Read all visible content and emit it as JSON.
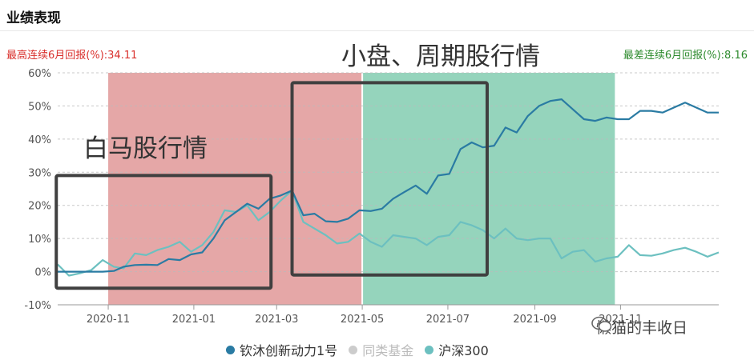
{
  "header": {
    "title": "业绩表现"
  },
  "stats": {
    "best": "最高连续6月回报(%):34.11",
    "worst": "最差连续6月回报(%):8.16"
  },
  "annotations": {
    "white_horse": "白马股行情",
    "small_cycle": "小盘、周期股行情"
  },
  "watermark": {
    "text": "懒猫的丰收日"
  },
  "colors": {
    "fund": "#2a7ba3",
    "index": "#6cc0c0",
    "peer": "#cccccc",
    "red_band": "#dc8a8a",
    "green_band": "#72c6a5"
  },
  "chart_data": {
    "type": "line",
    "ylim": [
      -10,
      60
    ],
    "y_ticks": [
      "60%",
      "50%",
      "40%",
      "30%",
      "20%",
      "10%",
      "0%",
      "-10%"
    ],
    "x_ticks": [
      "2020-11",
      "2021-01",
      "2021-03",
      "2021-05",
      "2021-07",
      "2021-09",
      "2021-11"
    ],
    "shaded_periods": [
      {
        "from": "2020-11-01",
        "to": "2021-05-01",
        "color": "red"
      },
      {
        "from": "2021-05-01",
        "to": "2021-10-28",
        "color": "green"
      }
    ],
    "boxes": [
      {
        "from": "2020-09-25",
        "to": "2021-02-25",
        "ymin": -5,
        "ymax": 29
      },
      {
        "from": "2021-03-12",
        "to": "2021-07-29",
        "ymin": -1,
        "ymax": 57
      }
    ],
    "series": [
      {
        "name": "钦沐创新动力1号",
        "color": "#2a7ba3",
        "points": [
          [
            "2020-09-26",
            0
          ],
          [
            "2020-10-04",
            0
          ],
          [
            "2020-10-12",
            0
          ],
          [
            "2020-10-20",
            0
          ],
          [
            "2020-10-28",
            0
          ],
          [
            "2020-11-05",
            0.2
          ],
          [
            "2020-11-12",
            1.5
          ],
          [
            "2020-11-20",
            2
          ],
          [
            "2020-11-28",
            2.1
          ],
          [
            "2020-12-06",
            2
          ],
          [
            "2020-12-14",
            3.8
          ],
          [
            "2020-12-22",
            3.5
          ],
          [
            "2020-12-30",
            5.2
          ],
          [
            "2021-01-07",
            5.8
          ],
          [
            "2021-01-15",
            10
          ],
          [
            "2021-01-23",
            15.5
          ],
          [
            "2021-01-31",
            18
          ],
          [
            "2021-02-08",
            20.5
          ],
          [
            "2021-02-16",
            19
          ],
          [
            "2021-02-24",
            22
          ],
          [
            "2021-03-04",
            23
          ],
          [
            "2021-03-12",
            24.5
          ],
          [
            "2021-03-20",
            17
          ],
          [
            "2021-03-28",
            17.5
          ],
          [
            "2021-04-05",
            15.2
          ],
          [
            "2021-04-13",
            15
          ],
          [
            "2021-04-21",
            16
          ],
          [
            "2021-04-29",
            18.5
          ],
          [
            "2021-05-07",
            18.3
          ],
          [
            "2021-05-15",
            19
          ],
          [
            "2021-05-23",
            22
          ],
          [
            "2021-05-31",
            24
          ],
          [
            "2021-06-08",
            26
          ],
          [
            "2021-06-16",
            23.5
          ],
          [
            "2021-06-24",
            29
          ],
          [
            "2021-07-02",
            29.5
          ],
          [
            "2021-07-10",
            37
          ],
          [
            "2021-07-18",
            39
          ],
          [
            "2021-07-26",
            37.5
          ],
          [
            "2021-08-03",
            38
          ],
          [
            "2021-08-11",
            43.5
          ],
          [
            "2021-08-19",
            42
          ],
          [
            "2021-08-27",
            47
          ],
          [
            "2021-09-04",
            50
          ],
          [
            "2021-09-12",
            51.5
          ],
          [
            "2021-09-20",
            52
          ],
          [
            "2021-09-28",
            49
          ],
          [
            "2021-10-06",
            46
          ],
          [
            "2021-10-14",
            45.5
          ],
          [
            "2021-10-22",
            46.5
          ],
          [
            "2021-10-30",
            46
          ],
          [
            "2021-11-07",
            46
          ],
          [
            "2021-11-15",
            48.5
          ],
          [
            "2021-11-23",
            48.5
          ],
          [
            "2021-12-01",
            48
          ],
          [
            "2021-12-09",
            49.5
          ],
          [
            "2021-12-17",
            51
          ],
          [
            "2021-12-25",
            49.5
          ],
          [
            "2022-01-02",
            48
          ],
          [
            "2022-01-10",
            48
          ]
        ]
      },
      {
        "name": "沪深300",
        "color": "#6cc0c0",
        "points": [
          [
            "2020-09-26",
            2.2
          ],
          [
            "2020-10-04",
            -1.2
          ],
          [
            "2020-10-12",
            -0.5
          ],
          [
            "2020-10-20",
            0.5
          ],
          [
            "2020-10-28",
            3.5
          ],
          [
            "2020-11-05",
            1.5
          ],
          [
            "2020-11-12",
            1
          ],
          [
            "2020-11-20",
            5.5
          ],
          [
            "2020-11-28",
            5
          ],
          [
            "2020-12-06",
            6.5
          ],
          [
            "2020-12-14",
            7.5
          ],
          [
            "2020-12-22",
            9
          ],
          [
            "2020-12-30",
            6
          ],
          [
            "2021-01-07",
            8
          ],
          [
            "2021-01-15",
            12
          ],
          [
            "2021-01-23",
            18.5
          ],
          [
            "2021-01-31",
            18
          ],
          [
            "2021-02-08",
            20
          ],
          [
            "2021-02-16",
            15.5
          ],
          [
            "2021-02-24",
            18
          ],
          [
            "2021-03-04",
            21.5
          ],
          [
            "2021-03-12",
            24.5
          ],
          [
            "2021-03-20",
            15
          ],
          [
            "2021-03-28",
            13
          ],
          [
            "2021-04-05",
            11
          ],
          [
            "2021-04-13",
            8.5
          ],
          [
            "2021-04-21",
            9
          ],
          [
            "2021-04-29",
            11.5
          ],
          [
            "2021-05-07",
            9
          ],
          [
            "2021-05-15",
            7.5
          ],
          [
            "2021-05-23",
            11
          ],
          [
            "2021-05-31",
            10.5
          ],
          [
            "2021-06-08",
            10
          ],
          [
            "2021-06-16",
            8
          ],
          [
            "2021-06-24",
            10.5
          ],
          [
            "2021-07-02",
            11
          ],
          [
            "2021-07-10",
            15
          ],
          [
            "2021-07-18",
            14
          ],
          [
            "2021-07-26",
            12.5
          ],
          [
            "2021-08-03",
            10
          ],
          [
            "2021-08-11",
            13
          ],
          [
            "2021-08-19",
            10
          ],
          [
            "2021-08-27",
            9.5
          ],
          [
            "2021-09-04",
            10
          ],
          [
            "2021-09-12",
            10
          ],
          [
            "2021-09-20",
            4
          ],
          [
            "2021-09-28",
            6
          ],
          [
            "2021-10-06",
            6.5
          ],
          [
            "2021-10-14",
            3
          ],
          [
            "2021-10-22",
            4
          ],
          [
            "2021-10-30",
            4.5
          ],
          [
            "2021-11-07",
            8
          ],
          [
            "2021-11-15",
            5
          ],
          [
            "2021-11-23",
            4.8
          ],
          [
            "2021-12-01",
            5.5
          ],
          [
            "2021-12-09",
            6.5
          ],
          [
            "2021-12-17",
            7.2
          ],
          [
            "2021-12-25",
            6
          ],
          [
            "2022-01-02",
            4.5
          ],
          [
            "2022-01-10",
            5.8
          ]
        ]
      }
    ],
    "legend": [
      {
        "name": "钦沐创新动力1号",
        "color": "#2a7ba3"
      },
      {
        "name": "同类基金",
        "color": "#cccccc"
      },
      {
        "name": "沪深300",
        "color": "#6cc0c0"
      }
    ],
    "legend_placement": "bottom-center"
  }
}
